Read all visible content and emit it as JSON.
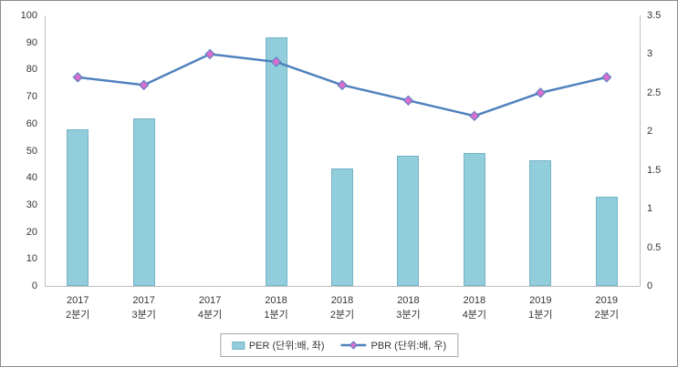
{
  "chart_data": {
    "type": "bar",
    "combo": "bar+line",
    "title": "",
    "categories": [
      {
        "line1": "2017",
        "line2": "2분기"
      },
      {
        "line1": "2017",
        "line2": "3분기"
      },
      {
        "line1": "2017",
        "line2": "4분기"
      },
      {
        "line1": "2018",
        "line2": "1분기"
      },
      {
        "line1": "2018",
        "line2": "2분기"
      },
      {
        "line1": "2018",
        "line2": "3분기"
      },
      {
        "line1": "2018",
        "line2": "4분기"
      },
      {
        "line1": "2019",
        "line2": "1분기"
      },
      {
        "line1": "2019",
        "line2": "2분기"
      }
    ],
    "series": [
      {
        "name": "PER (단위:배, 좌)",
        "type": "bar",
        "axis": "left",
        "color": "#92cddc",
        "border_color": "#74b3c6",
        "values": [
          58,
          62,
          null,
          92,
          43.5,
          48,
          49,
          46.5,
          33
        ]
      },
      {
        "name": "PBR (단위:배, 우)",
        "type": "line",
        "axis": "right",
        "color": "#4f81bd",
        "marker": "diamond",
        "marker_color": "#d86ed0",
        "values": [
          2.7,
          2.6,
          3.0,
          2.9,
          2.6,
          2.4,
          2.2,
          2.5,
          2.7
        ]
      }
    ],
    "left_axis": {
      "min": 0,
      "max": 100,
      "step": 10,
      "ticks": [
        "0",
        "10",
        "20",
        "30",
        "40",
        "50",
        "60",
        "70",
        "80",
        "90",
        "100"
      ]
    },
    "right_axis": {
      "min": 0,
      "max": 3.5,
      "step": 0.5,
      "ticks": [
        "0",
        "0.5",
        "1",
        "1.5",
        "2",
        "2.5",
        "3",
        "3.5"
      ]
    },
    "grid": false,
    "legend_position": "bottom",
    "xlabel": "",
    "ylabel": ""
  }
}
